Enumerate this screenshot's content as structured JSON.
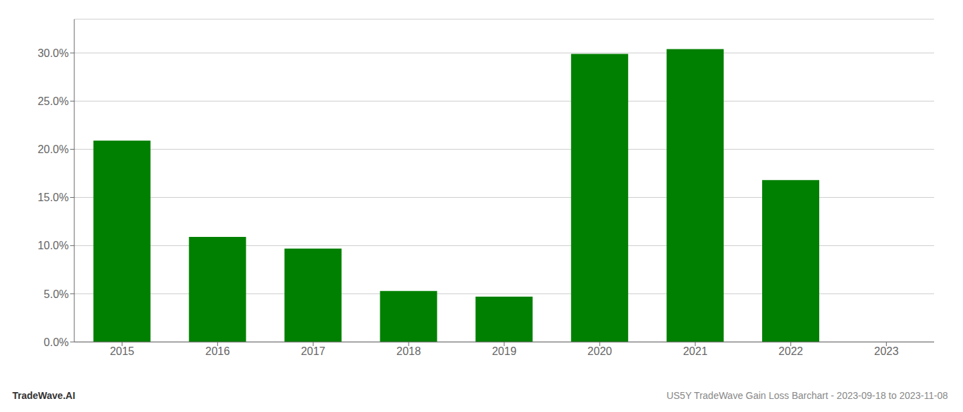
{
  "chart_data": {
    "type": "bar",
    "categories": [
      "2015",
      "2016",
      "2017",
      "2018",
      "2019",
      "2020",
      "2021",
      "2022",
      "2023"
    ],
    "values": [
      0.209,
      0.109,
      0.097,
      0.053,
      0.047,
      0.299,
      0.304,
      0.168,
      0.0
    ],
    "color": "#008000",
    "ylim": [
      0,
      0.335
    ],
    "yticks": [
      {
        "value": 0.0,
        "label": "0.0%"
      },
      {
        "value": 0.05,
        "label": "5.0%"
      },
      {
        "value": 0.1,
        "label": "10.0%"
      },
      {
        "value": 0.15,
        "label": "15.0%"
      },
      {
        "value": 0.2,
        "label": "20.0%"
      },
      {
        "value": 0.25,
        "label": "25.0%"
      },
      {
        "value": 0.3,
        "label": "30.0%"
      }
    ],
    "grid": true,
    "annotations": [
      {
        "text": "TradeWave.AI"
      },
      {
        "text": "US5Y TradeWave Gain Loss Barchart - 2023-09-18 to 2023-11-08"
      }
    ]
  }
}
